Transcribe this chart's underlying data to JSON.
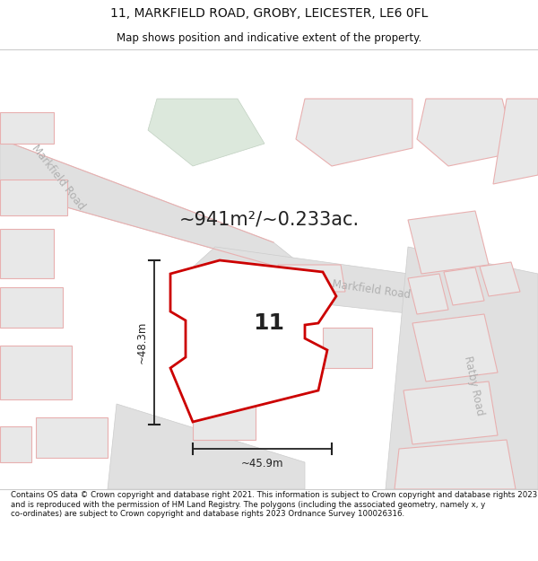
{
  "title": "11, MARKFIELD ROAD, GROBY, LEICESTER, LE6 0FL",
  "subtitle": "Map shows position and indicative extent of the property.",
  "footer": "Contains OS data © Crown copyright and database right 2021. This information is subject to Crown copyright and database rights 2023 and is reproduced with the permission of HM Land Registry. The polygons (including the associated geometry, namely x, y co-ordinates) are subject to Crown copyright and database rights 2023 Ordnance Survey 100026316.",
  "area_label": "~941m²/~0.233ac.",
  "number_label": "11",
  "width_label": "~45.9m",
  "height_label": "~48.3m",
  "map_bg": "#ffffff",
  "road_fill": "#e0e0e0",
  "bld_fill": "#e8e8e8",
  "bld_edge": "#e8b0b0",
  "green_fill": "#dce8dc",
  "highlight_stroke": "#cc0000",
  "highlight_fill": "#ffffff",
  "road_label_color": "#b0b0b0",
  "title_fontsize": 10,
  "subtitle_fontsize": 8.5,
  "footer_fontsize": 6.2,
  "area_fontsize": 15,
  "number_fontsize": 18,
  "dim_fontsize": 8.5
}
